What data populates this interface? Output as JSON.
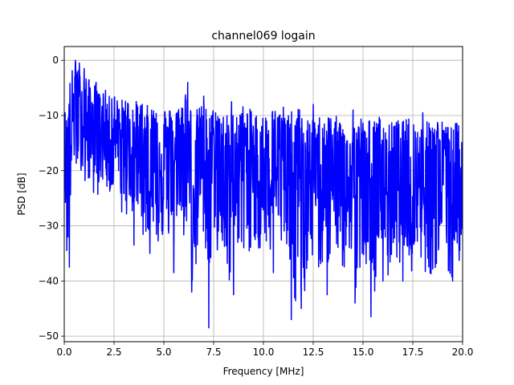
{
  "chart_data": {
    "type": "line",
    "title": "channel069 logain",
    "xlabel": "Frequency [MHz]",
    "ylabel": "PSD [dB]",
    "xlim": [
      0,
      20
    ],
    "ylim": [
      -51,
      2.5
    ],
    "xticks": [
      0,
      2.5,
      5,
      7.5,
      10,
      12.5,
      15,
      17.5,
      20
    ],
    "xtick_labels": [
      "0.0",
      "2.5",
      "5.0",
      "7.5",
      "10.0",
      "12.5",
      "15.0",
      "17.5",
      "20.0"
    ],
    "yticks": [
      0,
      -10,
      -20,
      -30,
      -40,
      -50
    ],
    "ytick_labels": [
      "0",
      "−10",
      "−20",
      "−30",
      "−40",
      "−50"
    ],
    "grid": true,
    "legend": "none",
    "series": [
      {
        "color": "#0000ff",
        "description": "noisy PSD trace, mean falling from about -12 dB near 0 MHz to about -20 dB near 20 MHz",
        "x": [
          0,
          0.1,
          0.25,
          0.35,
          0.45,
          0.55,
          0.65,
          0.75,
          0.9,
          1.0,
          1.2,
          1.4,
          1.6,
          1.8,
          2.0,
          2.2,
          2.4,
          2.6,
          2.8,
          3.0,
          3.2,
          3.5,
          3.8,
          4.1,
          4.4,
          4.7,
          5.0,
          5.2,
          5.5,
          5.8,
          6.1,
          6.3,
          6.5,
          6.8,
          7.0,
          7.2,
          7.4,
          7.6,
          8.0,
          8.3,
          8.6,
          9.0,
          9.4,
          9.8,
          10.0,
          10.4,
          10.8,
          11.2,
          11.5,
          11.8,
          12.0,
          12.4,
          12.8,
          13.2,
          13.6,
          14.0,
          14.4,
          14.8,
          15.2,
          15.5,
          15.8,
          16.2,
          16.6,
          17.0,
          17.4,
          17.8,
          18.2,
          18.6,
          19.0,
          19.4,
          19.8,
          20.0
        ],
        "upper": [
          -8,
          -10,
          -4,
          -2,
          -1,
          0,
          -1,
          -1.5,
          -3,
          -2.5,
          -3,
          -5,
          -4,
          -6,
          -4.5,
          -7,
          -5,
          -6.5,
          -8,
          -6,
          -7,
          -7.5,
          -7,
          -8,
          -8.5,
          -6.5,
          -8,
          -9,
          -7.5,
          -8.5,
          -4,
          -8,
          -9,
          -8.5,
          -7,
          -9.5,
          -9,
          -8,
          -9.5,
          -10,
          -9,
          -8,
          -9,
          -9.5,
          -10,
          -8.5,
          -9,
          -10,
          -9,
          -8.5,
          -10,
          -11,
          -10,
          -9.5,
          -10,
          -11,
          -12,
          -10,
          -10.5,
          -11,
          -10,
          -12,
          -10.5,
          -11,
          -10,
          -12,
          -11,
          -10,
          -11,
          -12,
          -11,
          -13
        ],
        "lower": [
          -25,
          -37,
          -30,
          -33,
          -24,
          -22,
          -20,
          -23,
          -24,
          -23,
          -26,
          -24,
          -25,
          -27,
          -26,
          -24,
          -26,
          -25,
          -28,
          -30,
          -27,
          -32,
          -30,
          -33,
          -28,
          -35,
          -32,
          -38,
          -33,
          -30,
          -35,
          -37,
          -42,
          -33,
          -32,
          -48,
          -37,
          -35,
          -34,
          -42,
          -33,
          -35,
          -36,
          -40,
          -34,
          -36,
          -32,
          -38,
          -47,
          -40,
          -45,
          -36,
          -38,
          -38,
          -35,
          -40,
          -42,
          -44,
          -38,
          -45,
          -36,
          -40,
          -35,
          -38,
          -40,
          -35,
          -40,
          -38,
          -36,
          -40,
          -38,
          -35
        ],
        "deep_dips": [
          {
            "x": 0.25,
            "y": -37.5
          },
          {
            "x": 0.55,
            "y": -33
          },
          {
            "x": 3.5,
            "y": -33.5
          },
          {
            "x": 4.3,
            "y": -35
          },
          {
            "x": 5.5,
            "y": -38.5
          },
          {
            "x": 6.4,
            "y": -42
          },
          {
            "x": 7.25,
            "y": -48.5
          },
          {
            "x": 8.5,
            "y": -42.5
          },
          {
            "x": 10.5,
            "y": -38.5
          },
          {
            "x": 11.4,
            "y": -47
          },
          {
            "x": 11.9,
            "y": -45
          },
          {
            "x": 13.2,
            "y": -42.5
          },
          {
            "x": 14.6,
            "y": -44
          },
          {
            "x": 15.4,
            "y": -46.5
          },
          {
            "x": 16.0,
            "y": -40
          },
          {
            "x": 17.0,
            "y": -40
          },
          {
            "x": 18.0,
            "y": -41.5
          },
          {
            "x": 19.5,
            "y": -40
          }
        ],
        "peaks": [
          {
            "x": 0.55,
            "y": 0
          },
          {
            "x": 0.75,
            "y": -0.5
          },
          {
            "x": 1.0,
            "y": -1.5
          },
          {
            "x": 1.6,
            "y": -4
          },
          {
            "x": 6.2,
            "y": -4
          },
          {
            "x": 7.0,
            "y": -6.5
          },
          {
            "x": 8.4,
            "y": -7.5
          },
          {
            "x": 11.0,
            "y": -8.5
          },
          {
            "x": 12.5,
            "y": -8
          },
          {
            "x": 14.5,
            "y": -9
          },
          {
            "x": 18.0,
            "y": -9.5
          }
        ]
      }
    ]
  }
}
